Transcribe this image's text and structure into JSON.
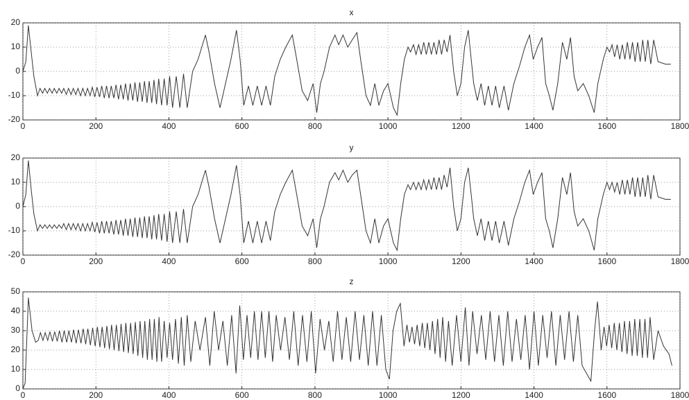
{
  "chart_data": [
    {
      "type": "line",
      "title": "x",
      "x": [
        0,
        8,
        15,
        22,
        30,
        40,
        47,
        54,
        60,
        67,
        73,
        80,
        86,
        93,
        99,
        106,
        112,
        119,
        125,
        132,
        138,
        145,
        151,
        158,
        164,
        171,
        177,
        184,
        190,
        197,
        203,
        210,
        216,
        223,
        229,
        236,
        242,
        249,
        255,
        262,
        268,
        275,
        281,
        288,
        294,
        301,
        307,
        314,
        320,
        327,
        333,
        340,
        346,
        353,
        359,
        366,
        372,
        380,
        387,
        395,
        402,
        410,
        420,
        430,
        440,
        450,
        465,
        480,
        500,
        510,
        525,
        540,
        555,
        570,
        585,
        595,
        605,
        618,
        630,
        642,
        654,
        666,
        678,
        690,
        705,
        720,
        738,
        750,
        765,
        780,
        795,
        805,
        815,
        825,
        840,
        855,
        865,
        877,
        890,
        902,
        915,
        925,
        940,
        952,
        964,
        975,
        988,
        1000,
        1015,
        1025,
        1035,
        1045,
        1055,
        1062,
        1070,
        1077,
        1084,
        1091,
        1098,
        1105,
        1112,
        1119,
        1126,
        1133,
        1140,
        1147,
        1154,
        1162,
        1170,
        1180,
        1190,
        1200,
        1210,
        1220,
        1228,
        1235,
        1245,
        1255,
        1265,
        1275,
        1285,
        1295,
        1305,
        1318,
        1330,
        1345,
        1360,
        1375,
        1388,
        1398,
        1410,
        1422,
        1432,
        1442,
        1452,
        1465,
        1478,
        1490,
        1500,
        1510,
        1520,
        1535,
        1550,
        1565,
        1575,
        1590,
        1600,
        1607,
        1614,
        1621,
        1628,
        1635,
        1642,
        1649,
        1656,
        1663,
        1670,
        1677,
        1684,
        1691,
        1698,
        1705,
        1712,
        1720,
        1728,
        1740,
        1760,
        1775
      ],
      "series": [
        {
          "color": "#333333",
          "values": [
            0,
            4,
            19,
            9,
            -2,
            -10,
            -7,
            -9,
            -7,
            -9,
            -7,
            -9,
            -7,
            -9,
            -7,
            -9,
            -7,
            -9.5,
            -7,
            -9.5,
            -7,
            -9.5,
            -7,
            -10,
            -7,
            -10,
            -7,
            -10,
            -6.5,
            -10.5,
            -6.5,
            -10.5,
            -6,
            -11,
            -6,
            -11,
            -6,
            -11,
            -5.5,
            -11.5,
            -5.5,
            -11.5,
            -5,
            -12,
            -5,
            -12,
            -4.5,
            -12.5,
            -4.5,
            -12.5,
            -4,
            -13,
            -4,
            -13,
            -3.5,
            -13.5,
            -3,
            -14,
            -3,
            -14,
            -2,
            -15,
            -2,
            -15,
            -1,
            -15,
            0,
            5,
            15,
            8,
            -5,
            -15,
            -5,
            5,
            17,
            5,
            -14,
            -6,
            -14,
            -6,
            -14,
            -6,
            -14,
            -2,
            5,
            10,
            15,
            5,
            -8,
            -12,
            -5,
            -17,
            -5,
            0,
            10,
            15,
            11,
            15,
            10,
            13,
            16,
            5,
            -10,
            -14,
            -5,
            -14,
            -8,
            -5,
            -15,
            -18,
            -5,
            5,
            10,
            8,
            11,
            7,
            11,
            7,
            12,
            7,
            12,
            7,
            12,
            7,
            13,
            7,
            13,
            8,
            15,
            0,
            -10,
            -5,
            10,
            17,
            5,
            -5,
            -12,
            -5,
            -14,
            -6,
            -14,
            -6,
            -15,
            -6,
            -16,
            -5,
            2,
            10,
            15,
            5,
            10,
            14,
            -5,
            -10,
            -16,
            -5,
            12,
            5,
            14,
            -2,
            -8,
            -5,
            -10,
            -17,
            -5,
            5,
            10,
            8,
            11,
            6,
            11,
            5,
            11,
            5,
            12,
            5,
            12,
            4,
            12,
            4,
            13,
            4,
            13,
            3,
            13,
            4,
            3,
            3
          ]
        }
      ],
      "xlim": [
        0,
        1800
      ],
      "xticks": [
        0,
        200,
        400,
        600,
        800,
        1000,
        1200,
        1400,
        1600,
        1800
      ],
      "ylim": [
        -20,
        20
      ],
      "yticks": [
        -20,
        -10,
        0,
        10,
        20
      ],
      "grid": true
    },
    {
      "type": "line",
      "title": "y",
      "x": [
        0,
        8,
        15,
        22,
        30,
        40,
        47,
        54,
        60,
        67,
        73,
        80,
        86,
        93,
        99,
        106,
        112,
        119,
        125,
        132,
        138,
        145,
        151,
        158,
        164,
        171,
        177,
        184,
        190,
        197,
        203,
        210,
        216,
        223,
        229,
        236,
        242,
        249,
        255,
        262,
        268,
        275,
        281,
        288,
        294,
        301,
        307,
        314,
        320,
        327,
        333,
        340,
        346,
        353,
        359,
        366,
        372,
        380,
        387,
        395,
        402,
        410,
        420,
        430,
        440,
        450,
        465,
        480,
        500,
        510,
        525,
        540,
        555,
        570,
        585,
        595,
        605,
        618,
        630,
        642,
        654,
        666,
        678,
        690,
        705,
        720,
        738,
        750,
        765,
        780,
        795,
        805,
        815,
        825,
        840,
        855,
        865,
        877,
        890,
        902,
        915,
        925,
        940,
        952,
        964,
        975,
        988,
        1000,
        1015,
        1025,
        1035,
        1045,
        1055,
        1062,
        1070,
        1077,
        1084,
        1091,
        1098,
        1105,
        1112,
        1119,
        1126,
        1133,
        1140,
        1147,
        1154,
        1162,
        1170,
        1180,
        1190,
        1200,
        1210,
        1220,
        1228,
        1235,
        1245,
        1255,
        1265,
        1275,
        1285,
        1295,
        1305,
        1318,
        1330,
        1345,
        1360,
        1375,
        1388,
        1398,
        1410,
        1422,
        1432,
        1442,
        1452,
        1465,
        1478,
        1490,
        1500,
        1510,
        1520,
        1535,
        1550,
        1565,
        1575,
        1590,
        1600,
        1607,
        1614,
        1621,
        1628,
        1635,
        1642,
        1649,
        1656,
        1663,
        1670,
        1677,
        1684,
        1691,
        1698,
        1705,
        1712,
        1720,
        1728,
        1740,
        1760,
        1775
      ],
      "series": [
        {
          "color": "#333333",
          "values": [
            0,
            5,
            19,
            8,
            -3,
            -10,
            -7.5,
            -9,
            -7.5,
            -9,
            -7.5,
            -9,
            -7.5,
            -9,
            -7.5,
            -9,
            -7,
            -9.5,
            -7,
            -9.5,
            -7,
            -9.5,
            -7,
            -10,
            -7,
            -10,
            -7,
            -10,
            -6.5,
            -10.5,
            -6.5,
            -11,
            -6,
            -11,
            -6,
            -11,
            -6,
            -11.5,
            -5.5,
            -11.5,
            -5.5,
            -12,
            -5,
            -12,
            -5,
            -12.5,
            -4.5,
            -12.5,
            -4.5,
            -13,
            -4,
            -13,
            -4,
            -13.5,
            -3.5,
            -13.5,
            -3,
            -14,
            -3,
            -14.5,
            -2,
            -15,
            -2,
            -15,
            -1,
            -15,
            0,
            5,
            15,
            8,
            -5,
            -15,
            -5,
            5,
            17,
            5,
            -15,
            -6,
            -15,
            -6,
            -15,
            -6,
            -14,
            -2,
            5,
            10,
            15,
            5,
            -8,
            -12,
            -5,
            -17,
            -5,
            0,
            10,
            14,
            11,
            15,
            10,
            13,
            15,
            5,
            -10,
            -15,
            -5,
            -15,
            -8,
            -5,
            -15,
            -18,
            -5,
            5,
            9,
            7,
            10,
            7,
            10,
            7,
            11,
            7,
            11,
            7,
            12,
            7,
            12,
            7,
            13,
            8,
            16,
            0,
            -10,
            -5,
            10,
            16,
            5,
            -5,
            -12,
            -5,
            -14,
            -6,
            -14,
            -6,
            -15,
            -6,
            -16,
            -5,
            2,
            10,
            15,
            5,
            10,
            14,
            -5,
            -10,
            -17,
            -5,
            12,
            5,
            14,
            -2,
            -8,
            -5,
            -10,
            -18,
            -5,
            5,
            10,
            7,
            10,
            6,
            10,
            5,
            11,
            5,
            11,
            5,
            12,
            4,
            12,
            4,
            12,
            4,
            13,
            3,
            13,
            4,
            3,
            3
          ]
        }
      ],
      "xlim": [
        0,
        1800
      ],
      "xticks": [
        0,
        200,
        400,
        600,
        800,
        1000,
        1200,
        1400,
        1600,
        1800
      ],
      "ylim": [
        -20,
        20
      ],
      "yticks": [
        -20,
        -10,
        0,
        10,
        20
      ],
      "grid": true
    },
    {
      "type": "line",
      "title": "z",
      "x": [
        0,
        6,
        15,
        25,
        35,
        42,
        48,
        55,
        61,
        68,
        74,
        81,
        87,
        94,
        100,
        107,
        113,
        120,
        126,
        133,
        139,
        146,
        152,
        159,
        165,
        172,
        178,
        185,
        191,
        198,
        204,
        211,
        217,
        224,
        230,
        237,
        243,
        250,
        256,
        263,
        269,
        276,
        282,
        289,
        295,
        302,
        308,
        315,
        321,
        328,
        334,
        341,
        347,
        354,
        360,
        367,
        373,
        380,
        387,
        395,
        402,
        410,
        418,
        426,
        434,
        442,
        450,
        460,
        472,
        485,
        500,
        512,
        524,
        536,
        548,
        560,
        572,
        584,
        594,
        604,
        614,
        624,
        634,
        644,
        654,
        664,
        674,
        684,
        694,
        706,
        718,
        730,
        742,
        754,
        766,
        778,
        790,
        802,
        814,
        826,
        838,
        850,
        862,
        874,
        886,
        898,
        910,
        922,
        934,
        946,
        958,
        970,
        982,
        994,
        1004,
        1014,
        1024,
        1034,
        1044,
        1052,
        1059,
        1066,
        1073,
        1080,
        1087,
        1094,
        1101,
        1108,
        1115,
        1122,
        1129,
        1136,
        1143,
        1150,
        1158,
        1166,
        1176,
        1188,
        1200,
        1212,
        1222,
        1232,
        1244,
        1256,
        1268,
        1280,
        1292,
        1304,
        1316,
        1328,
        1340,
        1352,
        1364,
        1376,
        1388,
        1400,
        1412,
        1424,
        1436,
        1448,
        1460,
        1472,
        1484,
        1496,
        1508,
        1520,
        1532,
        1544,
        1556,
        1566,
        1574,
        1584,
        1592,
        1599,
        1606,
        1613,
        1620,
        1627,
        1634,
        1641,
        1648,
        1655,
        1662,
        1669,
        1676,
        1683,
        1690,
        1697,
        1704,
        1711,
        1718,
        1728,
        1740,
        1755,
        1770,
        1778
      ],
      "series": [
        {
          "color": "#333333",
          "values": [
            0,
            3,
            47,
            30,
            24,
            25,
            29,
            25,
            29,
            25,
            29.5,
            24.5,
            29.5,
            24.5,
            30,
            24,
            30,
            24,
            30,
            24,
            30.5,
            23.5,
            30.5,
            23.5,
            31,
            23,
            31,
            22.5,
            31.5,
            22,
            32,
            21.5,
            32,
            21,
            32.5,
            20.5,
            33,
            20,
            33,
            19.5,
            33.5,
            19,
            34,
            18.5,
            34,
            18,
            34.5,
            17,
            35,
            16,
            35,
            15,
            36,
            15,
            36,
            14,
            37,
            14,
            35,
            16,
            34,
            15,
            36,
            13,
            37,
            12,
            38,
            14,
            35,
            20,
            37,
            12,
            40,
            20,
            35,
            12,
            38,
            8,
            43,
            15,
            38,
            16,
            40,
            15,
            40,
            16,
            40,
            14,
            38,
            20,
            37,
            15,
            40,
            12,
            38,
            14,
            40,
            8,
            36,
            20,
            35,
            14,
            40,
            15,
            37,
            14,
            40,
            15,
            38,
            12,
            40,
            12,
            38,
            10,
            5,
            30,
            40,
            44,
            22,
            33,
            24,
            32,
            23,
            33,
            22,
            34,
            21,
            34,
            20,
            35,
            18,
            36,
            16,
            37,
            14,
            35,
            12,
            38,
            14,
            42,
            12,
            40,
            18,
            38,
            15,
            40,
            14,
            38,
            12,
            40,
            14,
            36,
            15,
            38,
            10,
            40,
            12,
            38,
            16,
            40,
            12,
            38,
            15,
            40,
            14,
            38,
            12,
            8,
            4,
            30,
            45,
            20,
            32,
            22,
            33,
            21,
            34,
            20,
            34,
            19,
            35,
            18,
            35,
            17,
            36,
            17,
            36,
            16,
            36,
            16,
            37,
            15,
            30,
            22,
            18,
            12
          ]
        }
      ],
      "xlim": [
        0,
        1800
      ],
      "xticks": [
        0,
        200,
        400,
        600,
        800,
        1000,
        1200,
        1400,
        1600,
        1800
      ],
      "ylim": [
        0,
        50
      ],
      "yticks": [
        0,
        10,
        20,
        30,
        40,
        50
      ],
      "grid": true
    }
  ]
}
